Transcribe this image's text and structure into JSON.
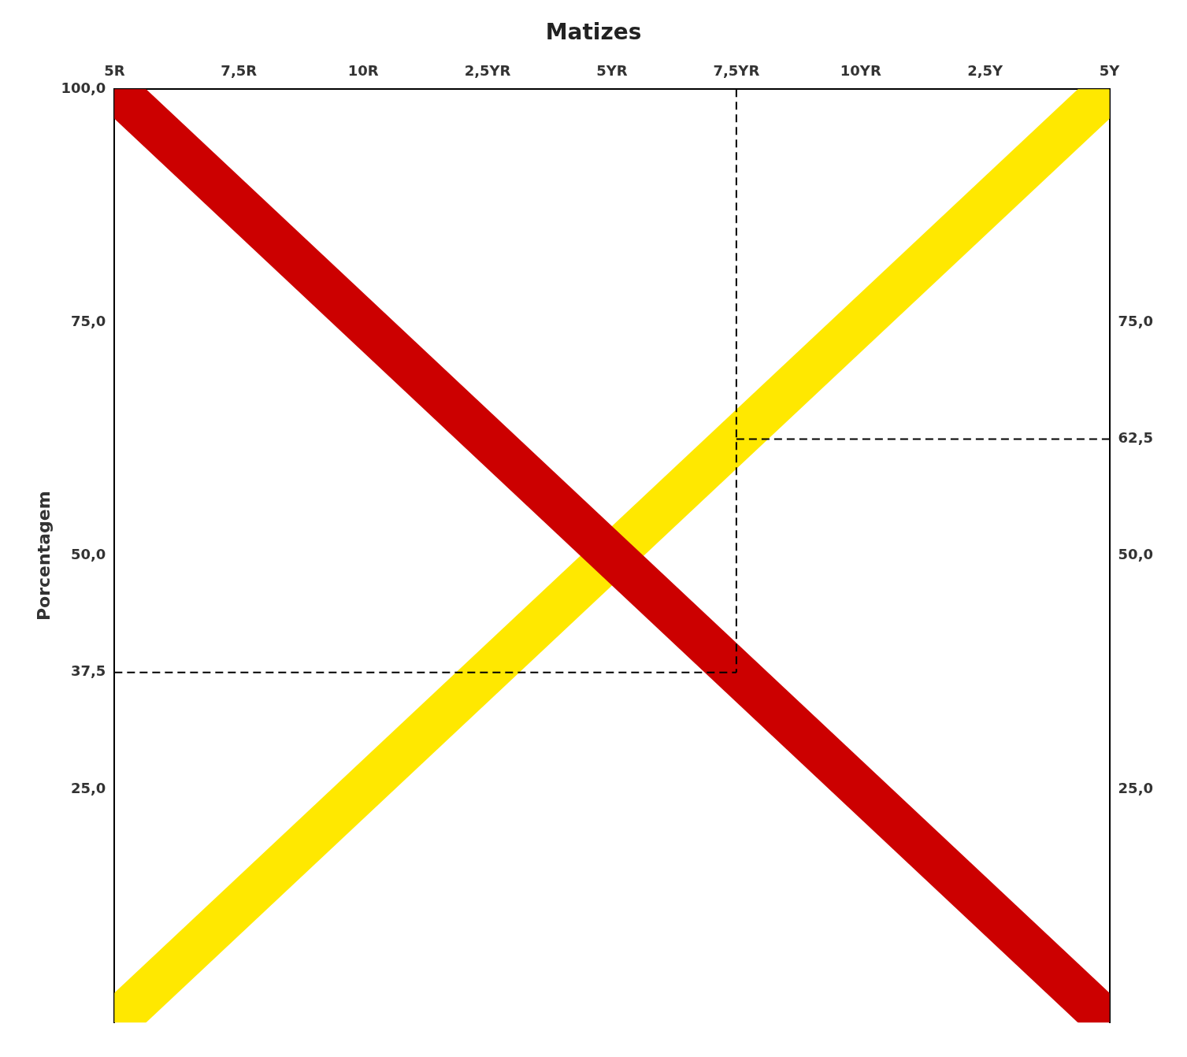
{
  "chart_data": {
    "type": "line",
    "title": "Matizes",
    "ylabel": "Porcentagem",
    "xlim": [
      0,
      8
    ],
    "xticks": [
      {
        "value": 0,
        "label": "5R"
      },
      {
        "value": 1,
        "label": "7,5R"
      },
      {
        "value": 2,
        "label": "10R"
      },
      {
        "value": 3,
        "label": "2,5YR"
      },
      {
        "value": 4,
        "label": "5YR"
      },
      {
        "value": 5,
        "label": "7,5YR"
      },
      {
        "value": 6,
        "label": "10YR"
      },
      {
        "value": 7,
        "label": "2,5Y"
      },
      {
        "value": 8,
        "label": "5Y"
      }
    ],
    "ylim": [
      0,
      100
    ],
    "yticks": [
      {
        "value": 25.0,
        "label": "25,0"
      },
      {
        "value": 37.5,
        "label": "37,5"
      },
      {
        "value": 50.0,
        "label": "50,0"
      },
      {
        "value": 75.0,
        "label": "75,0"
      },
      {
        "value": 100.0,
        "label": "100,0"
      }
    ],
    "y2lim": [
      0,
      100
    ],
    "y2ticks": [
      {
        "value": 25.0,
        "label": "25,0"
      },
      {
        "value": 50.0,
        "label": "50,0"
      },
      {
        "value": 62.5,
        "label": "62,5"
      },
      {
        "value": 75.0,
        "label": "75,0"
      }
    ],
    "grid": false,
    "series": [
      {
        "color": "#FFE800",
        "line_style": "solid",
        "x": [
          0,
          8
        ],
        "values": [
          0,
          100
        ]
      },
      {
        "color": "#CC0000",
        "line_style": "solid",
        "x": [
          0,
          8
        ],
        "values": [
          100,
          0
        ]
      },
      {
        "color": "black",
        "line_style": "dashed",
        "x": [
          5,
          5
        ],
        "values": [
          100,
          37.5
        ]
      },
      {
        "color": "black",
        "line_style": "dashed",
        "x": [
          0,
          5
        ],
        "values": [
          37.5,
          37.5
        ]
      },
      {
        "color": "black",
        "line_style": "dashed",
        "x": [
          5,
          8
        ],
        "values": [
          62.5,
          62.5
        ]
      }
    ]
  }
}
